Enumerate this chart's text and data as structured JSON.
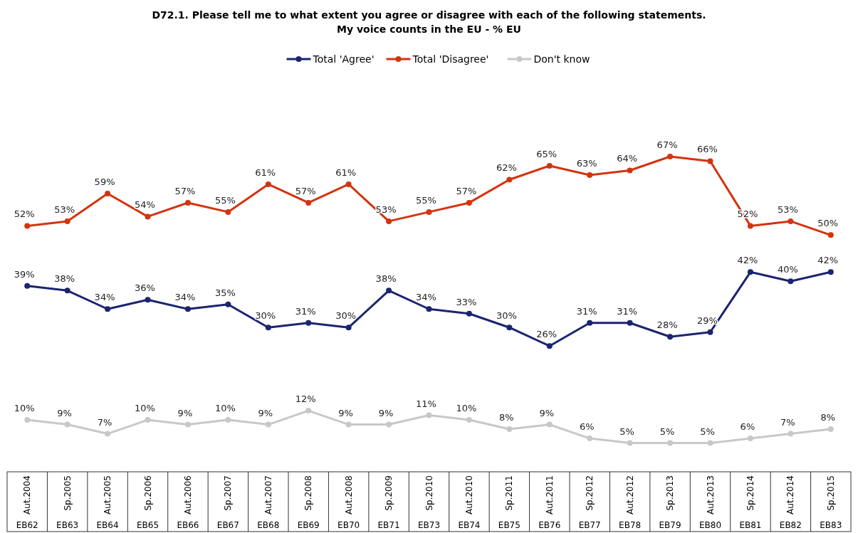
{
  "chart_data": {
    "type": "line",
    "title": "D72.1. Please tell me to what extent you agree or disagree with each of the following  statements.",
    "subtitle": "My voice counts in the EU - % EU",
    "categories": [
      "Aut.2004\nEB62",
      "Sp.2005\nEB63",
      "Aut.2005\nEB64",
      "Sp.2006\nEB65",
      "Aut.2006\nEB66",
      "Sp.2007\nEB67",
      "Aut.2007\nEB68",
      "Sp.2008\nEB69",
      "Aut.2008\nEB70",
      "Sp.2009\nEB71",
      "Sp.2010\nEB73",
      "Aut.2010\nEB74",
      "Sp.2011\nEB75",
      "Aut.2011\nEB76",
      "Sp.2012\nEB77",
      "Aut.2012\nEB78",
      "Sp.2013\nEB79",
      "Aut.2013\nEB80",
      "Sp.2014\nEB81",
      "Aut.2014\nEB82",
      "Sp.2015\nEB83"
    ],
    "series": [
      {
        "name": "Total 'Agree'",
        "color": "#1b2470",
        "values": [
          39,
          38,
          34,
          36,
          34,
          35,
          30,
          31,
          30,
          38,
          34,
          33,
          30,
          26,
          31,
          31,
          28,
          29,
          42,
          40,
          42
        ],
        "value_labels": [
          "39%",
          "38%",
          "34%",
          "36%",
          "34%",
          "35%",
          "30%",
          "31%",
          "30%",
          "38%",
          "34%",
          "33%",
          "30%",
          "26%",
          "31%",
          "31%",
          "28%",
          "29%",
          "42%",
          "40%",
          "42%"
        ]
      },
      {
        "name": "Total 'Disagree'",
        "color": "#d23410",
        "values": [
          52,
          53,
          59,
          54,
          57,
          55,
          61,
          57,
          61,
          53,
          55,
          57,
          62,
          65,
          63,
          64,
          67,
          66,
          52,
          53,
          50
        ],
        "value_labels": [
          "52%",
          "53%",
          "59%",
          "54%",
          "57%",
          "55%",
          "61%",
          "57%",
          "61%",
          "53%",
          "55%",
          "57%",
          "62%",
          "65%",
          "63%",
          "64%",
          "67%",
          "66%",
          "52%",
          "53%",
          "50%"
        ]
      },
      {
        "name": "Don't know",
        "color": "#c8c8c8",
        "values": [
          10,
          9,
          7,
          10,
          9,
          10,
          9,
          12,
          9,
          9,
          11,
          10,
          8,
          9,
          6,
          5,
          5,
          5,
          6,
          7,
          8
        ],
        "value_labels": [
          "10%",
          "9%",
          "7%",
          "10%",
          "9%",
          "10%",
          "9%",
          "12%",
          "9%",
          "9%",
          "11%",
          "10%",
          "8%",
          "9%",
          "6%",
          "5%",
          "5%",
          "5%",
          "6%",
          "7%",
          "8%"
        ]
      }
    ],
    "legend": "top",
    "marker": "circle",
    "line_style": "solid"
  }
}
